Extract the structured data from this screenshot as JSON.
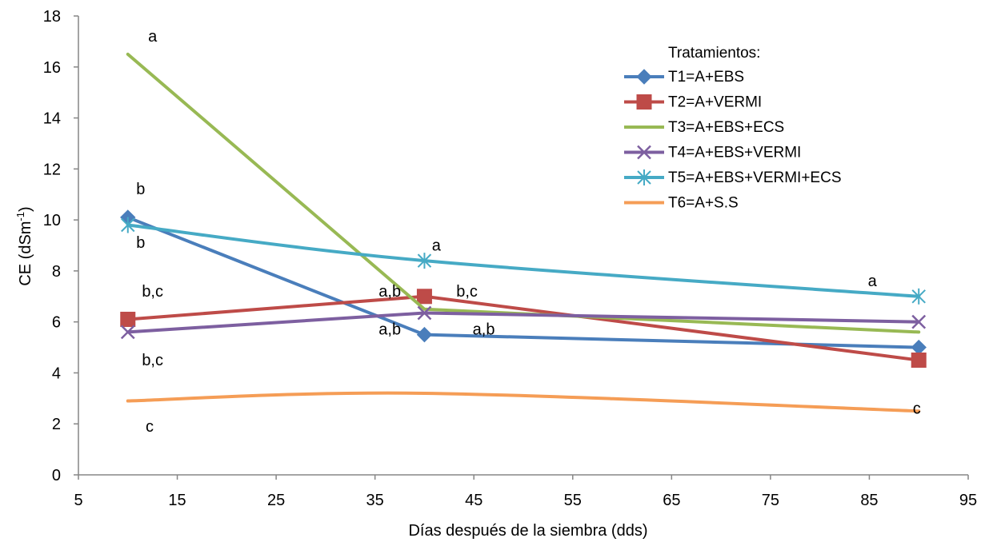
{
  "chart_data": {
    "type": "line",
    "xlabel": "Días después de la siembra (dds)",
    "ylabel_main": "CE (dSm",
    "ylabel_sup": "-1",
    "ylabel_close": ")",
    "xlim": [
      5,
      95
    ],
    "ylim": [
      0,
      18
    ],
    "xticks": [
      5,
      15,
      25,
      35,
      45,
      55,
      65,
      75,
      85,
      95
    ],
    "yticks": [
      0,
      2,
      4,
      6,
      8,
      10,
      12,
      14,
      16,
      18
    ],
    "grid": false,
    "legend": {
      "title": "Tratamientos:",
      "position": "top-right"
    },
    "x": [
      10,
      40,
      90
    ],
    "series": [
      {
        "name": "T1=A+EBS",
        "color": "#4a7ebb",
        "marker": "diamond",
        "smooth": false,
        "values": [
          10.1,
          5.5,
          5.0
        ]
      },
      {
        "name": "T2=A+VERMI",
        "color": "#be4b48",
        "marker": "square",
        "smooth": false,
        "values": [
          6.1,
          7.0,
          4.5
        ]
      },
      {
        "name": "T3=A+EBS+ECS",
        "color": "#98b954",
        "marker": "none",
        "smooth": false,
        "values": [
          16.5,
          6.5,
          5.6
        ]
      },
      {
        "name": "T4=A+EBS+VERMI",
        "color": "#7d5fa0",
        "marker": "x",
        "smooth": false,
        "values": [
          5.6,
          6.35,
          6.0
        ]
      },
      {
        "name": "T5=A+EBS+VERMI+ECS",
        "color": "#46aac5",
        "marker": "star",
        "smooth": true,
        "values": [
          9.8,
          8.4,
          7.0
        ]
      },
      {
        "name": "T6=A+S.S",
        "color": "#f59d56",
        "marker": "none",
        "smooth": true,
        "values": [
          2.9,
          3.2,
          2.5
        ]
      }
    ],
    "annotations": [
      {
        "text": "a",
        "x": 12.5,
        "y": 17.0
      },
      {
        "text": "b",
        "x": 11.3,
        "y": 11.0
      },
      {
        "text": "b",
        "x": 11.3,
        "y": 8.9
      },
      {
        "text": "b,c",
        "x": 12.5,
        "y": 7.0
      },
      {
        "text": "b,c",
        "x": 12.5,
        "y": 4.3
      },
      {
        "text": "c",
        "x": 12.2,
        "y": 1.7
      },
      {
        "text": "a,b",
        "x": 36.5,
        "y": 7.0
      },
      {
        "text": "a,b",
        "x": 36.5,
        "y": 5.5
      },
      {
        "text": "b,c",
        "x": 44.3,
        "y": 7.0
      },
      {
        "text": "a,b",
        "x": 46.0,
        "y": 5.5
      },
      {
        "text": "a",
        "x": 41.2,
        "y": 8.8
      },
      {
        "text": "a",
        "x": 85.3,
        "y": 7.4
      },
      {
        "text": "c",
        "x": 89.8,
        "y": 2.4
      }
    ]
  }
}
